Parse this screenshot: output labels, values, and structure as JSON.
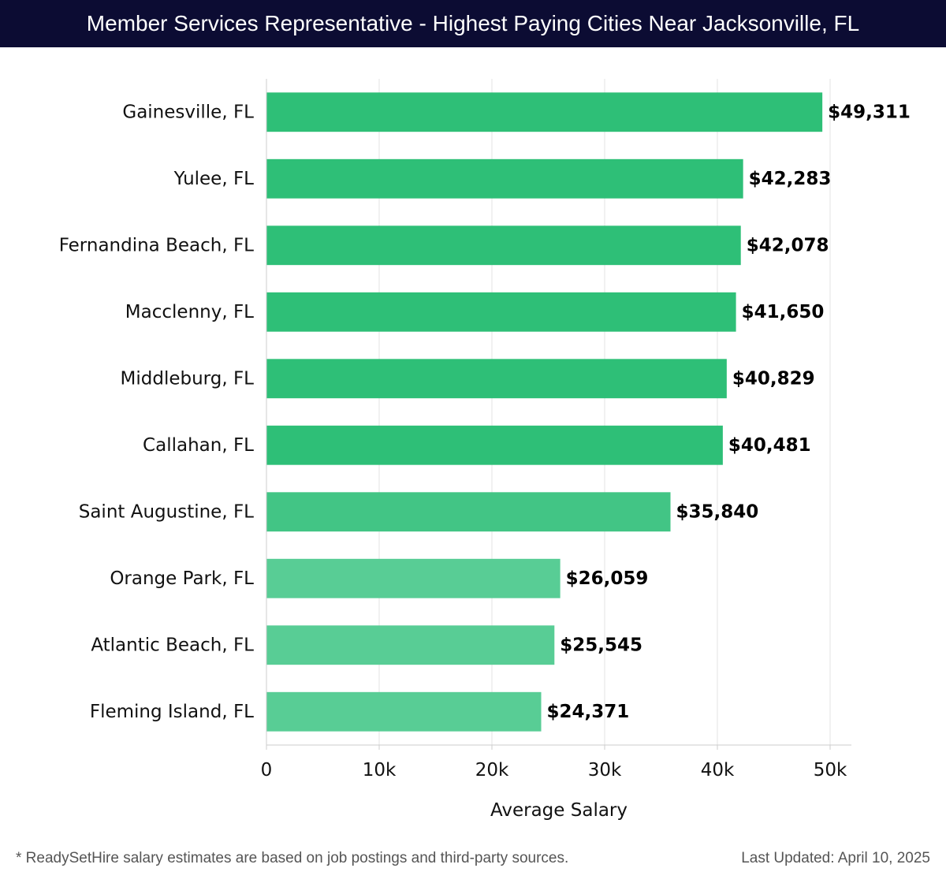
{
  "title": "Member Services Representative - Highest Paying Cities Near Jacksonville, FL",
  "chart_data": {
    "type": "bar",
    "orientation": "horizontal",
    "categories": [
      "Gainesville, FL",
      "Yulee, FL",
      "Fernandina Beach, FL",
      "Macclenny, FL",
      "Middleburg, FL",
      "Callahan, FL",
      "Saint Augustine, FL",
      "Orange Park, FL",
      "Atlantic Beach, FL",
      "Fleming Island, FL"
    ],
    "values": [
      49311,
      42283,
      42078,
      41650,
      40829,
      40481,
      35840,
      26059,
      25545,
      24371
    ],
    "value_labels": [
      "$49,311",
      "$42,283",
      "$42,078",
      "$41,650",
      "$40,829",
      "$40,481",
      "$35,840",
      "$26,059",
      "$25,545",
      "$24,371"
    ],
    "xlabel": "Average Salary",
    "ylabel": "",
    "xlim": [
      0,
      52000
    ],
    "xticks": [
      0,
      10000,
      20000,
      30000,
      40000,
      50000
    ],
    "xtick_labels": [
      "0",
      "10k",
      "20k",
      "30k",
      "40k",
      "50k"
    ],
    "grid": true,
    "colors": {
      "bar_dark": "#2ebf77",
      "bar_mid": "#42c585",
      "bar_light": "#58cd95",
      "grid": "#e3e3e3",
      "axis": "#cccccc",
      "text": "#111111"
    }
  },
  "footer": {
    "note": "* ReadySetHire salary estimates are based on job postings and third-party sources.",
    "updated": "Last Updated: April 10, 2025"
  }
}
